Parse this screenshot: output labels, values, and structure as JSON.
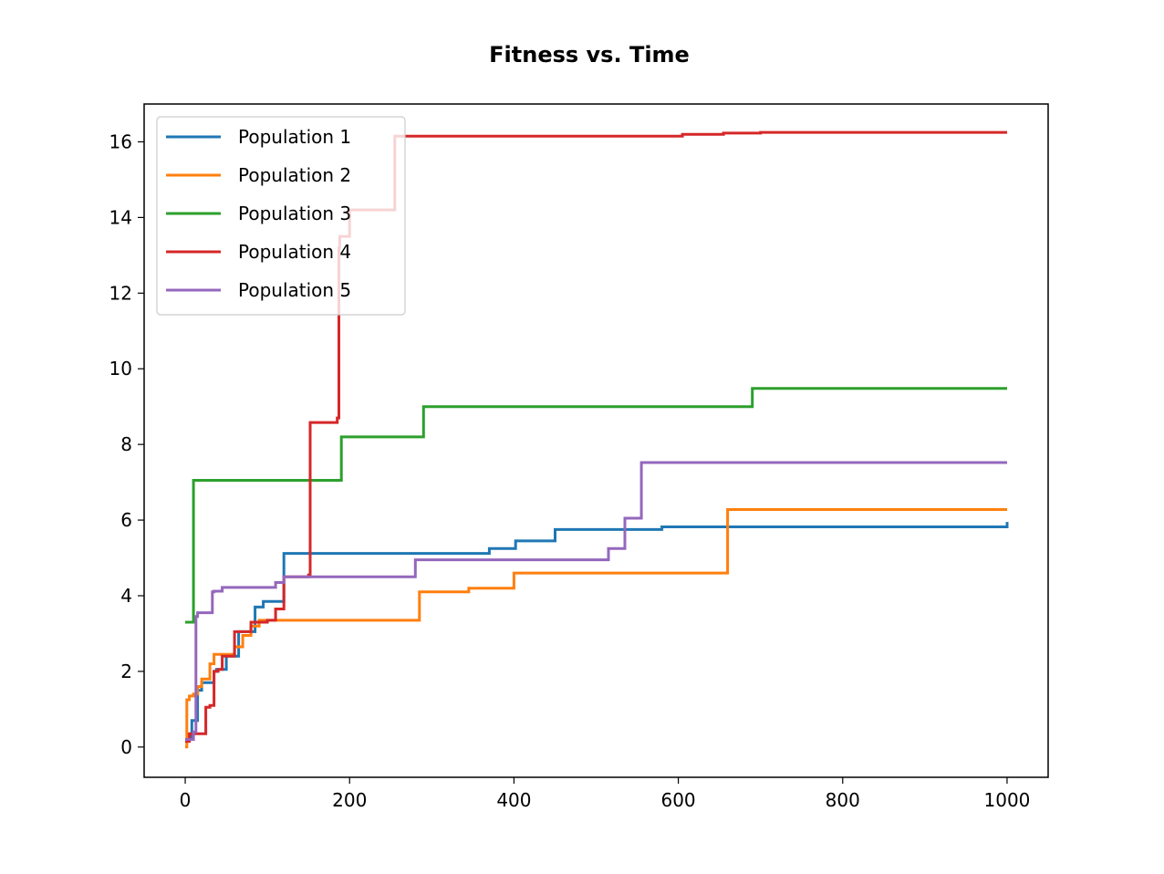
{
  "chart_data": {
    "type": "line",
    "title": "Fitness vs. Time",
    "xlabel": "",
    "ylabel": "",
    "xlim": [
      -50,
      1050
    ],
    "ylim": [
      -0.8,
      17.0
    ],
    "xticks": [
      0,
      200,
      400,
      600,
      800,
      1000
    ],
    "yticks": [
      0,
      2,
      4,
      6,
      8,
      10,
      12,
      14,
      16
    ],
    "grid": false,
    "legend_position": "upper-left",
    "series": [
      {
        "name": "Population 1",
        "color": "#1f77b4",
        "x": [
          0,
          5,
          8,
          12,
          15,
          20,
          25,
          35,
          38,
          50,
          55,
          65,
          70,
          85,
          88,
          95,
          100,
          115,
          120,
          365,
          370,
          398,
          402,
          445,
          450,
          575,
          580,
          998,
          1000
        ],
        "y": [
          0.2,
          0.2,
          0.7,
          0.7,
          1.5,
          1.7,
          1.7,
          2.0,
          2.05,
          2.4,
          2.4,
          3.05,
          3.05,
          3.7,
          3.7,
          3.85,
          3.85,
          3.85,
          5.12,
          5.12,
          5.25,
          5.25,
          5.45,
          5.45,
          5.75,
          5.75,
          5.82,
          5.82,
          5.95
        ]
      },
      {
        "name": "Population 2",
        "color": "#ff7f0e",
        "x": [
          0,
          2,
          5,
          10,
          15,
          20,
          25,
          30,
          35,
          45,
          55,
          60,
          70,
          80,
          90,
          100,
          280,
          285,
          340,
          345,
          395,
          400,
          655,
          660,
          1000
        ],
        "y": [
          0.0,
          1.25,
          1.35,
          1.4,
          1.6,
          1.8,
          1.8,
          2.2,
          2.45,
          2.45,
          2.45,
          2.65,
          2.95,
          3.2,
          3.35,
          3.35,
          3.35,
          4.1,
          4.1,
          4.2,
          4.2,
          4.6,
          4.6,
          6.28,
          6.28
        ]
      },
      {
        "name": "Population 3",
        "color": "#2ca02c",
        "x": [
          0,
          8,
          10,
          185,
          190,
          285,
          290,
          685,
          690,
          1000
        ],
        "y": [
          3.3,
          3.3,
          7.05,
          7.05,
          8.2,
          8.2,
          9.0,
          9.0,
          9.48,
          9.48
        ]
      },
      {
        "name": "Population 4",
        "color": "#d62728",
        "x": [
          0,
          5,
          10,
          15,
          20,
          22,
          25,
          30,
          35,
          40,
          45,
          50,
          55,
          60,
          65,
          75,
          80,
          90,
          100,
          110,
          120,
          130,
          145,
          150,
          152,
          155,
          165,
          185,
          187,
          188,
          200,
          250,
          255,
          260,
          600,
          605,
          650,
          655,
          700,
          750,
          1000
        ],
        "y": [
          0.15,
          0.35,
          0.35,
          0.35,
          0.35,
          0.35,
          1.05,
          1.1,
          2.0,
          2.05,
          2.4,
          2.4,
          2.4,
          3.05,
          3.05,
          3.05,
          3.3,
          3.3,
          3.35,
          3.65,
          4.5,
          4.5,
          4.5,
          4.55,
          8.58,
          8.58,
          8.58,
          8.7,
          13.2,
          13.5,
          14.2,
          14.2,
          16.15,
          16.15,
          16.15,
          16.2,
          16.2,
          16.23,
          16.25,
          16.25,
          16.25
        ]
      },
      {
        "name": "Population 5",
        "color": "#9467bd",
        "x": [
          0,
          5,
          10,
          13,
          15,
          20,
          30,
          33,
          35,
          45,
          50,
          60,
          70,
          90,
          100,
          110,
          115,
          120,
          275,
          280,
          510,
          515,
          530,
          535,
          550,
          555,
          1000
        ],
        "y": [
          0.2,
          0.2,
          0.4,
          3.45,
          3.55,
          3.55,
          3.55,
          4.1,
          4.12,
          4.22,
          4.22,
          4.22,
          4.22,
          4.22,
          4.22,
          4.35,
          4.35,
          4.5,
          4.5,
          4.95,
          4.95,
          5.25,
          5.25,
          6.05,
          6.05,
          7.52,
          7.52
        ]
      }
    ]
  }
}
